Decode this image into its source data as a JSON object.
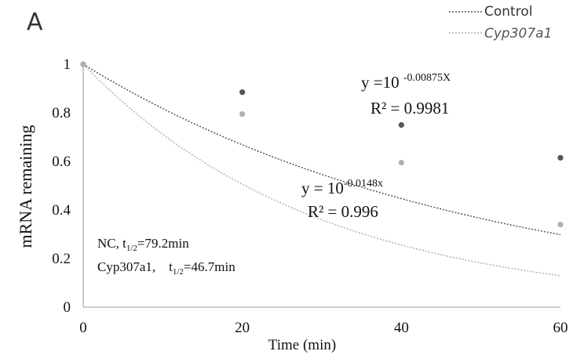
{
  "chart_data": {
    "type": "scatter",
    "panel_label": "A",
    "xlabel": "Time (min)",
    "ylabel": "mRNA remaining",
    "xlim": [
      0,
      60
    ],
    "ylim": [
      0,
      1
    ],
    "xticks": [
      "0",
      "20",
      "40",
      "60"
    ],
    "yticks": [
      "0",
      "0.2",
      "0.4",
      "0.6",
      "0.8",
      "1"
    ],
    "grid": false,
    "legend_position": "top-right",
    "series": [
      {
        "name": "Control",
        "italic": false,
        "color": "#555555",
        "x": [
          0,
          20,
          40,
          60
        ],
        "y": [
          1.0,
          0.885,
          0.75,
          0.615
        ],
        "trendline": {
          "type": "exponential",
          "coefficient": -0.00875,
          "x_range": [
            0,
            60
          ]
        }
      },
      {
        "name": "Cyp307a1",
        "italic": true,
        "color": "#b0b0b0",
        "x": [
          0,
          20,
          40,
          60
        ],
        "y": [
          1.0,
          0.795,
          0.595,
          0.34
        ],
        "trendline": {
          "type": "exponential",
          "coefficient": -0.0148,
          "x_range": [
            0,
            60
          ]
        }
      }
    ],
    "annotations": {
      "control_equation": {
        "prefix": "y =10 ",
        "exponent": "-0.00875X"
      },
      "control_r2": "R² = 0.9981",
      "cyp_equation": {
        "prefix": "y = 10",
        "exponent": "-0.0148x"
      },
      "cyp_r2": "R² = 0.996",
      "half_life_nc": {
        "label": "NC,  t",
        "subscript": "1/2",
        "value": "=79.2min"
      },
      "half_life_cyp": {
        "label": "Cyp307a1,    t",
        "subscript": "1/2",
        "value": "=46.7min"
      }
    }
  }
}
